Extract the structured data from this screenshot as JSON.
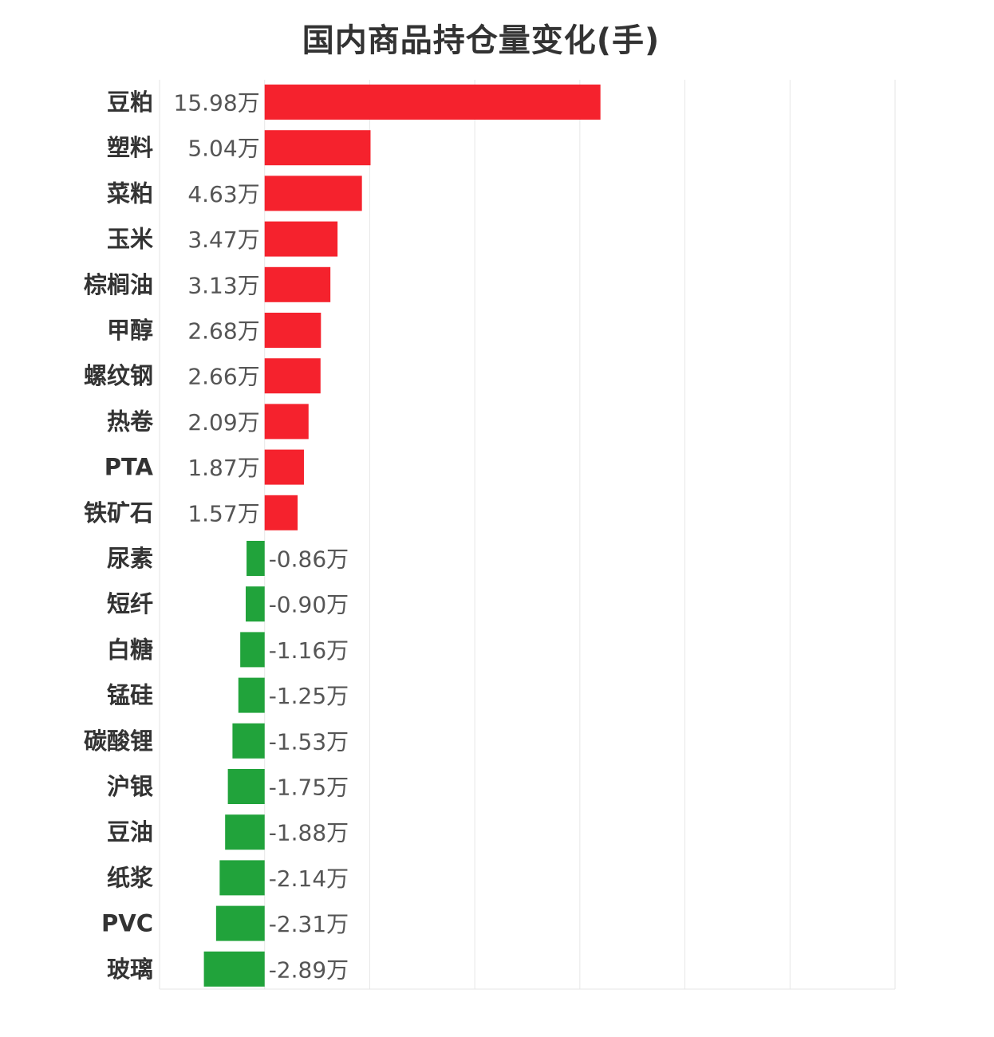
{
  "chart_data": {
    "type": "bar",
    "orientation": "horizontal",
    "title": "国内商品持仓量变化(手)",
    "xlabel": "",
    "ylabel": "",
    "unit": "万",
    "grid": true,
    "xlim": [
      -5,
      30
    ],
    "colors": {
      "positive": "#f5222d",
      "negative": "#21a33b",
      "grid": "#e6e6e6",
      "title": "#333333",
      "category_label": "#333333",
      "value_label": "#555555"
    },
    "categories": [
      "豆粕",
      "塑料",
      "菜粕",
      "玉米",
      "棕榈油",
      "甲醇",
      "螺纹钢",
      "热卷",
      "PTA",
      "铁矿石",
      "尿素",
      "短纤",
      "白糖",
      "锰硅",
      "碳酸锂",
      "沪银",
      "豆油",
      "纸浆",
      "PVC",
      "玻璃"
    ],
    "values": [
      15.98,
      5.04,
      4.63,
      3.47,
      3.13,
      2.68,
      2.66,
      2.09,
      1.87,
      1.57,
      -0.86,
      -0.9,
      -1.16,
      -1.25,
      -1.53,
      -1.75,
      -1.88,
      -2.14,
      -2.31,
      -2.89
    ],
    "value_labels": [
      "15.98万",
      "5.04万",
      "4.63万",
      "3.47万",
      "3.13万",
      "2.68万",
      "2.66万",
      "2.09万",
      "1.87万",
      "1.57万",
      "-0.86万",
      "-0.90万",
      "-1.16万",
      "-1.25万",
      "-1.53万",
      "-1.75万",
      "-1.88万",
      "-2.14万",
      "-2.31万",
      "-2.89万"
    ]
  }
}
